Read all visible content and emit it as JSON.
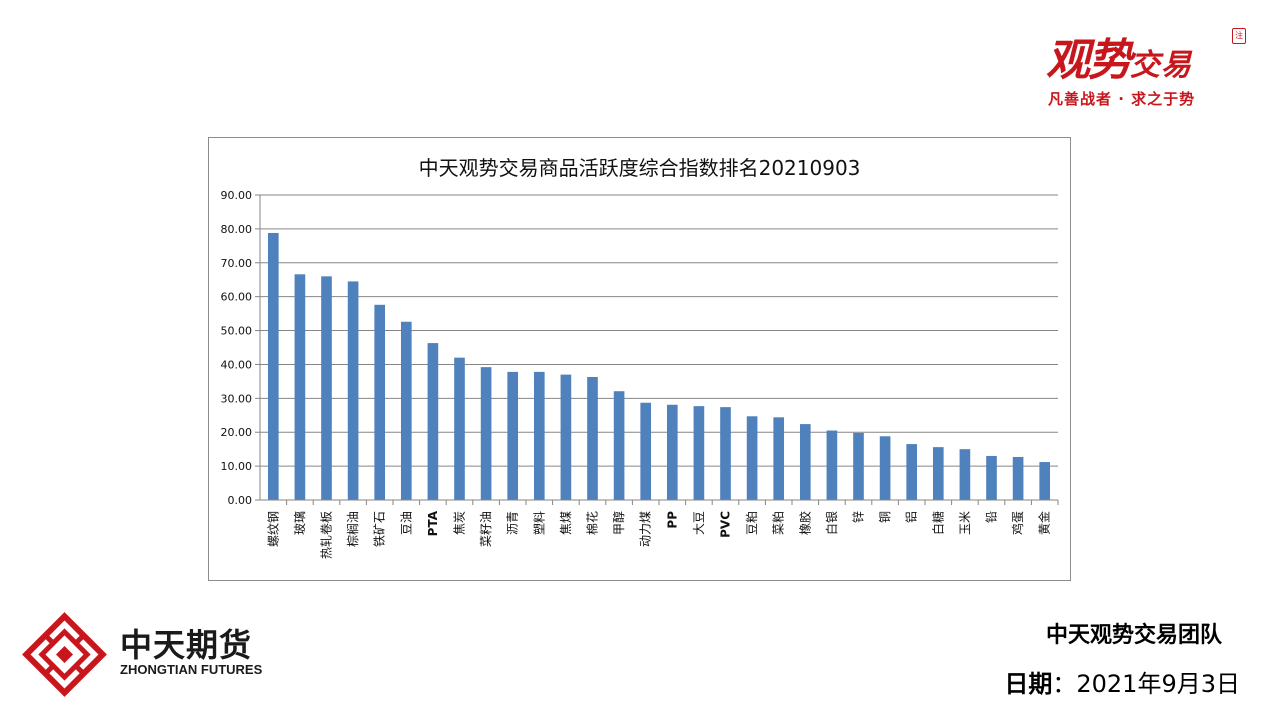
{
  "brand": {
    "name_main": "观势",
    "name_small": "交易",
    "seal": "注",
    "slogan": "凡善战者 · 求之于势"
  },
  "company": {
    "name_cn": "中天期货",
    "name_en": "ZHONGTIAN FUTURES",
    "color": "#c8161d"
  },
  "footer": {
    "team": "中天观势交易团队",
    "date_label": "日期",
    "date_sep": "：",
    "date_value": "2021年9月3日"
  },
  "chart_data": {
    "type": "bar",
    "title": "中天观势交易商品活跃度综合指数排名20210903",
    "xlabel": "",
    "ylabel": "",
    "ylim": [
      0,
      90
    ],
    "yticks": [
      "0.00",
      "10.00",
      "20.00",
      "30.00",
      "40.00",
      "50.00",
      "60.00",
      "70.00",
      "80.00",
      "90.00"
    ],
    "grid": true,
    "legend": "none",
    "bar_color": "#4f81bd",
    "categories": [
      "螺纹钢",
      "玻璃",
      "热轧卷板",
      "棕榈油",
      "铁矿石",
      "豆油",
      "PTA",
      "焦炭",
      "菜籽油",
      "沥青",
      "塑料",
      "焦煤",
      "棉花",
      "甲醇",
      "动力煤",
      "PP",
      "大豆",
      "PVC",
      "豆粕",
      "菜粕",
      "橡胶",
      "白银",
      "锌",
      "铜",
      "铝",
      "白糖",
      "玉米",
      "铅",
      "鸡蛋",
      "黄金"
    ],
    "values": [
      78.8,
      66.6,
      66.0,
      64.5,
      57.6,
      52.6,
      46.3,
      42.0,
      39.2,
      37.8,
      37.8,
      37.0,
      36.3,
      32.1,
      28.7,
      28.1,
      27.7,
      27.4,
      24.7,
      24.4,
      22.4,
      20.5,
      19.8,
      18.8,
      16.5,
      15.6,
      15.0,
      13.0,
      12.7,
      11.2
    ]
  }
}
